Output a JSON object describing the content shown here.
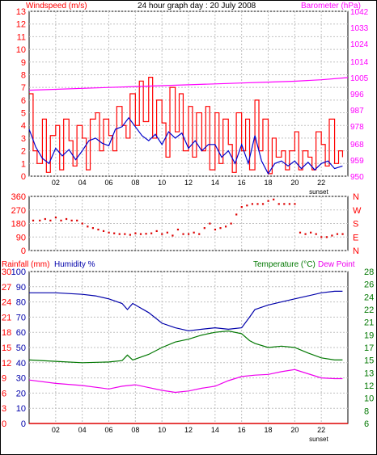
{
  "title": "24 hour graph day : 20 July 2008",
  "colors": {
    "wind": "#ff0000",
    "gust": "#cc0000",
    "avg_wind": "#0000cc",
    "barometer": "#ff00ff",
    "direction": "#dd0000",
    "humidity": "#0000aa",
    "temperature": "#007700",
    "dewpoint": "#ee00ee",
    "rain": "#dd0000",
    "grid": "#c0c0c0",
    "frame": "#000000"
  },
  "chart_data": [
    {
      "type": "line",
      "name": "wind-barometer",
      "left_axis_label": "Windspeed (m/s)",
      "right_axis_label": "Barometer (hPa)",
      "y_left_ticks": [
        "0",
        "1",
        "2",
        "3",
        "4",
        "5",
        "6",
        "7",
        "8",
        "9",
        "10",
        "11",
        "12",
        "13"
      ],
      "y_left_lim": [
        0,
        13
      ],
      "y_right_ticks": [
        "950",
        "959",
        "968",
        "978",
        "987",
        "996",
        "1005",
        "1014",
        "1024",
        "1033",
        "1042"
      ],
      "y_right_lim": [
        950,
        1042
      ],
      "x_ticks": [
        "02",
        "04",
        "06",
        "08",
        "10",
        "12",
        "14",
        "16",
        "18",
        "20",
        "22"
      ],
      "x_lim": [
        0,
        24
      ],
      "sunset_label": "sunset",
      "sunset_hour": 21.8,
      "series": [
        {
          "key": "barometer",
          "points": [
            [
              0,
              998
            ],
            [
              2,
              998.5
            ],
            [
              4,
              999
            ],
            [
              6,
              999.5
            ],
            [
              8,
              1000
            ],
            [
              10,
              1000.5
            ],
            [
              12,
              1001
            ],
            [
              14,
              1001.5
            ],
            [
              16,
              1002
            ],
            [
              18,
              1002.5
            ],
            [
              20,
              1003
            ],
            [
              22,
              1003.8
            ],
            [
              24,
              1005
            ]
          ]
        },
        {
          "key": "wind_avg",
          "points": [
            [
              0,
              3.7
            ],
            [
              0.5,
              2.3
            ],
            [
              1,
              1.4
            ],
            [
              1.5,
              1.0
            ],
            [
              2,
              2.2
            ],
            [
              2.5,
              1.6
            ],
            [
              3,
              2.1
            ],
            [
              3.5,
              1.3
            ],
            [
              4,
              2.0
            ],
            [
              4.5,
              2.8
            ],
            [
              5,
              3.0
            ],
            [
              5.5,
              2.6
            ],
            [
              6,
              2.4
            ],
            [
              6.5,
              3.7
            ],
            [
              7,
              3.9
            ],
            [
              7.5,
              4.6
            ],
            [
              8,
              3.9
            ],
            [
              8.5,
              3.2
            ],
            [
              9,
              2.8
            ],
            [
              9.5,
              3.3
            ],
            [
              10,
              2.5
            ],
            [
              10.5,
              3.5
            ],
            [
              11,
              3.0
            ],
            [
              11.5,
              3.4
            ],
            [
              12,
              2.2
            ],
            [
              12.5,
              2.8
            ],
            [
              13,
              2.0
            ],
            [
              13.5,
              2.5
            ],
            [
              14,
              2.5
            ],
            [
              14.5,
              1.5
            ],
            [
              15,
              2.0
            ],
            [
              15.5,
              1.0
            ],
            [
              16,
              2.5
            ],
            [
              16.5,
              1.0
            ],
            [
              17,
              3.2
            ],
            [
              17.5,
              1.2
            ],
            [
              18,
              0.2
            ],
            [
              18.5,
              1.0
            ],
            [
              19,
              1.2
            ],
            [
              19.5,
              0.8
            ],
            [
              20,
              1.2
            ],
            [
              20.5,
              0.6
            ],
            [
              21,
              1.1
            ],
            [
              21.5,
              0.5
            ],
            [
              22,
              1.0
            ],
            [
              22.5,
              1.2
            ],
            [
              23,
              0.6
            ],
            [
              23.6,
              0.8
            ]
          ]
        },
        {
          "key": "wind_gust",
          "points": [
            [
              0,
              6.5
            ],
            [
              0.3,
              2.0
            ],
            [
              0.6,
              1.0
            ],
            [
              1,
              4.5
            ],
            [
              1.3,
              0.3
            ],
            [
              1.6,
              3.2
            ],
            [
              2,
              4.0
            ],
            [
              2.3,
              0.5
            ],
            [
              2.6,
              4.5
            ],
            [
              3,
              2.8
            ],
            [
              3.3,
              0.8
            ],
            [
              3.6,
              4.0
            ],
            [
              4,
              3.0
            ],
            [
              4.3,
              0.5
            ],
            [
              4.6,
              4.5
            ],
            [
              5,
              5.0
            ],
            [
              5.3,
              2.0
            ],
            [
              5.6,
              4.5
            ],
            [
              6,
              3.2
            ],
            [
              6.3,
              2.0
            ],
            [
              6.6,
              5.5
            ],
            [
              7,
              4.0
            ],
            [
              7.3,
              3.0
            ],
            [
              7.6,
              6.5
            ],
            [
              8,
              4.0
            ],
            [
              8.3,
              7.5
            ],
            [
              8.6,
              4.3
            ],
            [
              9,
              7.8
            ],
            [
              9.3,
              3.0
            ],
            [
              9.6,
              6.0
            ],
            [
              10,
              4.2
            ],
            [
              10.3,
              1.5
            ],
            [
              10.6,
              7.0
            ],
            [
              11,
              3.5
            ],
            [
              11.3,
              6.5
            ],
            [
              11.6,
              2.0
            ],
            [
              12,
              5.5
            ],
            [
              12.3,
              1.5
            ],
            [
              12.6,
              5.0
            ],
            [
              13,
              2.0
            ],
            [
              13.3,
              5.5
            ],
            [
              13.6,
              0.5
            ],
            [
              14,
              5.0
            ],
            [
              14.3,
              1.0
            ],
            [
              14.6,
              4.5
            ],
            [
              15,
              2.5
            ],
            [
              15.3,
              0.3
            ],
            [
              15.6,
              5.0
            ],
            [
              16,
              2.0
            ],
            [
              16.3,
              4.5
            ],
            [
              16.6,
              0.5
            ],
            [
              17,
              6.0
            ],
            [
              17.3,
              2.0
            ],
            [
              17.6,
              4.5
            ],
            [
              18,
              0.2
            ],
            [
              18.3,
              3.0
            ],
            [
              18.6,
              1.5
            ],
            [
              19,
              2.0
            ],
            [
              19.3,
              0.5
            ],
            [
              19.6,
              2.0
            ],
            [
              20,
              3.5
            ],
            [
              20.3,
              0.5
            ],
            [
              20.6,
              2.0
            ],
            [
              21,
              1.5
            ],
            [
              21.3,
              0.5
            ],
            [
              21.6,
              3.5
            ],
            [
              22,
              2.5
            ],
            [
              22.3,
              0.8
            ],
            [
              22.6,
              4.5
            ],
            [
              23,
              1.0
            ],
            [
              23.3,
              2.0
            ],
            [
              23.6,
              1.5
            ]
          ]
        }
      ]
    },
    {
      "type": "scatter",
      "name": "wind-direction",
      "y_left_ticks": [
        "360",
        "270",
        "180",
        "90",
        "0"
      ],
      "y_left_lim": [
        0,
        360
      ],
      "y_right_ticks": [
        "N",
        "W",
        "S",
        "E",
        "N"
      ],
      "points": [
        [
          0.3,
          200
        ],
        [
          0.8,
          200
        ],
        [
          1.2,
          210
        ],
        [
          1.6,
          200
        ],
        [
          2.0,
          220
        ],
        [
          2.4,
          200
        ],
        [
          2.8,
          210
        ],
        [
          3.2,
          200
        ],
        [
          3.6,
          200
        ],
        [
          4.0,
          180
        ],
        [
          4.4,
          160
        ],
        [
          4.8,
          150
        ],
        [
          5.2,
          140
        ],
        [
          5.6,
          130
        ],
        [
          6.0,
          120
        ],
        [
          6.4,
          115
        ],
        [
          6.8,
          110
        ],
        [
          7.2,
          110
        ],
        [
          7.6,
          105
        ],
        [
          8.0,
          115
        ],
        [
          8.4,
          110
        ],
        [
          8.8,
          112
        ],
        [
          9.2,
          115
        ],
        [
          9.6,
          130
        ],
        [
          10.0,
          110
        ],
        [
          10.4,
          120
        ],
        [
          10.8,
          100
        ],
        [
          11.2,
          140
        ],
        [
          11.6,
          110
        ],
        [
          12.0,
          110
        ],
        [
          12.4,
          120
        ],
        [
          12.8,
          110
        ],
        [
          13.2,
          150
        ],
        [
          13.6,
          180
        ],
        [
          14.0,
          140
        ],
        [
          14.4,
          150
        ],
        [
          14.8,
          160
        ],
        [
          15.2,
          180
        ],
        [
          15.6,
          240
        ],
        [
          16.0,
          290
        ],
        [
          16.4,
          300
        ],
        [
          16.8,
          310
        ],
        [
          17.2,
          310
        ],
        [
          17.6,
          310
        ],
        [
          18.0,
          330
        ],
        [
          18.4,
          340
        ],
        [
          18.8,
          310
        ],
        [
          19.2,
          310
        ],
        [
          19.6,
          310
        ],
        [
          20.0,
          310
        ],
        [
          20.4,
          120
        ],
        [
          20.8,
          110
        ],
        [
          21.2,
          120
        ],
        [
          21.6,
          110
        ],
        [
          22.0,
          90
        ],
        [
          22.4,
          90
        ],
        [
          22.8,
          100
        ],
        [
          23.2,
          110
        ],
        [
          23.6,
          110
        ]
      ]
    },
    {
      "type": "line",
      "name": "rain-humidity-temperature",
      "labels": {
        "rain": "Rainfall (mm)",
        "humidity": "Humidity %",
        "temperature": "Temperature (°C)",
        "dewpoint": "Dew Point"
      },
      "y_rain_ticks": [
        "0",
        "3",
        "6",
        "9",
        "12",
        "15",
        "18",
        "21",
        "24",
        "27",
        "30"
      ],
      "y_hum_ticks": [
        "0",
        "10",
        "20",
        "30",
        "40",
        "50",
        "60",
        "70",
        "80",
        "90",
        "100"
      ],
      "y_temp_ticks": [
        "6",
        "8",
        "10",
        "12",
        "13",
        "15",
        "17",
        "19",
        "21",
        "22",
        "24",
        "26",
        "28"
      ],
      "y_temp_lim": [
        6,
        28
      ],
      "series": [
        {
          "key": "humidity",
          "points": [
            [
              0,
              86
            ],
            [
              2,
              86
            ],
            [
              4,
              85
            ],
            [
              5,
              84
            ],
            [
              6,
              82
            ],
            [
              7,
              79
            ],
            [
              7.4,
              75
            ],
            [
              7.8,
              79
            ],
            [
              9,
              73
            ],
            [
              10,
              66
            ],
            [
              11,
              63
            ],
            [
              12,
              61
            ],
            [
              13,
              62
            ],
            [
              14,
              63
            ],
            [
              15,
              62
            ],
            [
              16,
              63
            ],
            [
              16.6,
              70
            ],
            [
              17,
              75
            ],
            [
              18,
              78
            ],
            [
              19,
              80
            ],
            [
              20,
              82
            ],
            [
              21,
              84
            ],
            [
              22,
              86
            ],
            [
              23,
              87
            ],
            [
              23.6,
              87
            ]
          ]
        },
        {
          "key": "temperature",
          "points": [
            [
              0,
              15.2
            ],
            [
              2,
              15.0
            ],
            [
              4,
              14.8
            ],
            [
              6,
              14.9
            ],
            [
              7,
              15.1
            ],
            [
              7.4,
              15.9
            ],
            [
              7.8,
              15.2
            ],
            [
              9,
              16.0
            ],
            [
              10,
              17.0
            ],
            [
              11,
              17.8
            ],
            [
              12,
              18.2
            ],
            [
              13,
              18.8
            ],
            [
              14,
              19.2
            ],
            [
              15,
              19.4
            ],
            [
              16,
              19.0
            ],
            [
              16.6,
              18.0
            ],
            [
              17,
              17.6
            ],
            [
              18,
              17.0
            ],
            [
              19,
              17.2
            ],
            [
              20,
              17.0
            ],
            [
              21,
              16.2
            ],
            [
              22,
              15.5
            ],
            [
              23,
              15.2
            ],
            [
              23.6,
              15.2
            ]
          ]
        },
        {
          "key": "dewpoint",
          "points": [
            [
              0,
              12.3
            ],
            [
              2,
              11.8
            ],
            [
              4,
              11.5
            ],
            [
              6,
              11.0
            ],
            [
              7,
              11.4
            ],
            [
              8,
              11.6
            ],
            [
              9,
              11.2
            ],
            [
              10,
              10.8
            ],
            [
              11,
              10.5
            ],
            [
              12,
              10.7
            ],
            [
              13,
              11.1
            ],
            [
              14,
              11.4
            ],
            [
              15,
              12.2
            ],
            [
              16,
              12.8
            ],
            [
              17,
              13.0
            ],
            [
              18,
              13.1
            ],
            [
              19,
              13.5
            ],
            [
              20,
              13.8
            ],
            [
              21,
              13.2
            ],
            [
              22,
              12.6
            ],
            [
              23,
              12.5
            ],
            [
              23.6,
              12.5
            ]
          ]
        },
        {
          "key": "rain",
          "points": [
            [
              0,
              0
            ],
            [
              24,
              0
            ]
          ]
        }
      ]
    }
  ]
}
